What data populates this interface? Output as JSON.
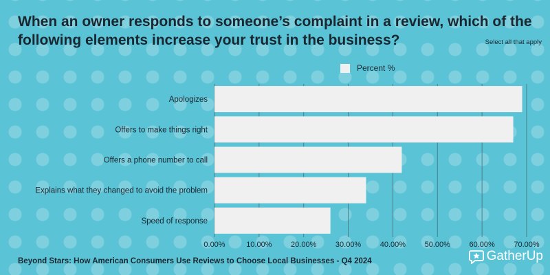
{
  "title": "When an owner responds to someone’s complaint in a review, which of the following elements increase your trust in the business?",
  "subtitle": "Select all that apply",
  "footer": "Beyond Stars: How American Consumers Use Reviews to Choose Local Businesses - Q4 2024",
  "brand": "GatherUp",
  "colors": {
    "bar": "#f0f0f0",
    "background": "#5bc3d6",
    "grid": "#4a7f8c"
  },
  "chart_data": {
    "type": "bar",
    "orientation": "horizontal",
    "categories": [
      "Apologizes",
      "Offers to make things right",
      "Offers a phone number to call",
      "Explains what they changed to avoid the problem",
      "Speed of response"
    ],
    "series": [
      {
        "name": "Percent %",
        "values": [
          69,
          67,
          42,
          34,
          26
        ]
      }
    ],
    "xlim": [
      0,
      70
    ],
    "xticks": [
      0,
      10,
      20,
      30,
      40,
      50,
      60,
      70
    ],
    "xtick_labels": [
      "0.00%",
      "10.00%",
      "20.00%",
      "30.00%",
      "40.00%",
      "50.00%",
      "60.00%",
      "70.00%"
    ],
    "legend": "top-center",
    "grid": true
  }
}
